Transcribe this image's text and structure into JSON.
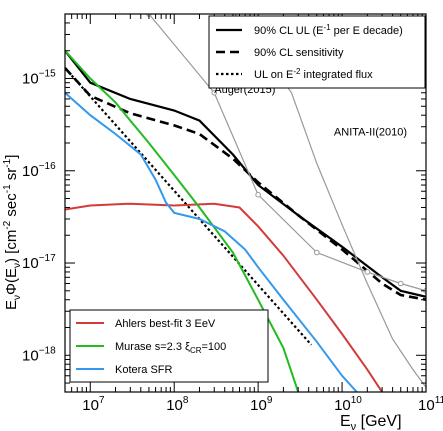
{
  "chart_data": {
    "type": "line",
    "xscale": "log",
    "yscale": "log",
    "xlim": [
      5000000,
      100000000000
    ],
    "ylim": [
      4e-19,
      5e-15
    ],
    "xlabel": {
      "base": "E",
      "sub": "ν",
      "rest": " [GeV]"
    },
    "ylabel": {
      "p1": "E",
      "p1sub": "ν",
      "p2": "Φ(E",
      "p2sub": "ν",
      "p3": ") [cm",
      "sup1": "-2",
      "p4": " sec",
      "sup2": "-1",
      "p5": " sr",
      "sup3": "-1",
      "p6": "]"
    },
    "x_ticks": [
      {
        "value": 10000000,
        "base": "10",
        "exp": "7"
      },
      {
        "value": 100000000,
        "base": "10",
        "exp": "8"
      },
      {
        "value": 1000000000,
        "base": "10",
        "exp": "9"
      },
      {
        "value": 10000000000,
        "base": "10",
        "exp": "10"
      },
      {
        "value": 100000000000,
        "base": "10",
        "exp": "11"
      }
    ],
    "y_ticks": [
      {
        "value": 1e-18,
        "base": "10",
        "exp": "−18"
      },
      {
        "value": 1e-17,
        "base": "10",
        "exp": "−17"
      },
      {
        "value": 1e-16,
        "base": "10",
        "exp": "−16"
      },
      {
        "value": 1e-15,
        "base": "10",
        "exp": "−15"
      }
    ],
    "legend_top": {
      "placement": "top-right",
      "entries": [
        {
          "p1": "90% CL UL (E",
          "sup": "-1",
          "p2": " per E decade)",
          "series": "ul"
        },
        {
          "p1": "90% CL sensitivity",
          "series": "sens"
        },
        {
          "p1": "UL on E",
          "sup": "-2",
          "p2": " integrated flux",
          "series": "e2"
        }
      ]
    },
    "legend_bottom": {
      "placement": "bottom-left",
      "entries": [
        {
          "p1": "Ahlers best-fit 3 EeV",
          "series": "ahlers"
        },
        {
          "p1": "Murase s=2.3 ξ",
          "sub": "CR",
          "p2": "=100",
          "series": "murase"
        },
        {
          "p1": "Kotera SFR",
          "series": "kotera"
        }
      ]
    },
    "annotations": [
      {
        "id": "auger",
        "text": "Auger(2015)",
        "x": 300000000,
        "y": 7e-16
      },
      {
        "id": "anita",
        "text": "ANITA-II(2010)",
        "x": 8000000000,
        "y": 2.4e-16
      }
    ],
    "series": [
      {
        "id": "ul",
        "color": "#000000",
        "width": 2.2,
        "dash": "",
        "points": [
          [
            5000000.0,
            2e-15
          ],
          [
            10000000.0,
            9e-16
          ],
          [
            30000000.0,
            6e-16
          ],
          [
            100000000.0,
            4.5e-16
          ],
          [
            200000000.0,
            3.5e-16
          ],
          [
            500000000.0,
            1.5e-16
          ],
          [
            1000000000.0,
            7e-17
          ],
          [
            3000000000.0,
            3.3e-17
          ],
          [
            10000000000.0,
            1.5e-17
          ],
          [
            30000000000.0,
            7e-18
          ],
          [
            50000000000.0,
            5e-18
          ],
          [
            100000000000.0,
            4.3e-18
          ]
        ]
      },
      {
        "id": "sens",
        "color": "#000000",
        "width": 2.6,
        "dash": "9,5",
        "points": [
          [
            5000000.0,
            1.3e-15
          ],
          [
            10000000.0,
            6.5e-16
          ],
          [
            30000000.0,
            4.2e-16
          ],
          [
            100000000.0,
            3.1e-16
          ],
          [
            200000000.0,
            2.5e-16
          ],
          [
            500000000.0,
            1.35e-16
          ],
          [
            1000000000.0,
            7.5e-17
          ],
          [
            3000000000.0,
            3.3e-17
          ],
          [
            10000000000.0,
            1.4e-17
          ],
          [
            30000000000.0,
            6e-18
          ],
          [
            50000000000.0,
            4.5e-18
          ],
          [
            100000000000.0,
            4e-18
          ]
        ]
      },
      {
        "id": "e2",
        "color": "#000000",
        "width": 2.2,
        "dash": "2.5,2.5",
        "points": [
          [
            5000000.0,
            1.3e-15
          ],
          [
            4300000000.0,
            1.3e-18
          ]
        ]
      },
      {
        "id": "auger",
        "color": "#999999",
        "width": 1.2,
        "dash": "",
        "markers": true,
        "points": [
          [
            50000000.0,
            5e-15
          ],
          [
            300000000.0,
            7e-16
          ],
          [
            1000000000.0,
            5.5e-17
          ],
          [
            5000000000.0,
            1.3e-17
          ],
          [
            20000000000.0,
            8e-18
          ],
          [
            50000000000.0,
            6e-18
          ],
          [
            100000000000.0,
            5e-18
          ]
        ]
      },
      {
        "id": "anita",
        "color": "#999999",
        "width": 1.2,
        "dash": "",
        "markers": false,
        "points": [
          [
            530000000.0,
            5e-15
          ],
          [
            2500000000.0,
            7e-16
          ],
          [
            5000000000.0,
            1.2e-16
          ],
          [
            10000000000.0,
            2.6e-17
          ],
          [
            20000000000.0,
            6e-18
          ],
          [
            40000000000.0,
            1.5e-18
          ],
          [
            70000000000.0,
            7e-19
          ],
          [
            100000000000.0,
            4.5e-19
          ]
        ]
      },
      {
        "id": "ahlers",
        "color": "#d33b3b",
        "width": 2.0,
        "dash": "",
        "points": [
          [
            5000000.0,
            3.8e-17
          ],
          [
            10000000.0,
            4.2e-17
          ],
          [
            30000000.0,
            4.4e-17
          ],
          [
            100000000.0,
            4.2e-17
          ],
          [
            300000000.0,
            4.4e-17
          ],
          [
            600000000.0,
            4e-17
          ],
          [
            1000000000.0,
            2.5e-17
          ],
          [
            2000000000.0,
            1.2e-17
          ],
          [
            5000000000.0,
            4e-18
          ],
          [
            10000000000.0,
            1.7e-18
          ],
          [
            20000000000.0,
            7e-19
          ],
          [
            30000000000.0,
            4e-19
          ]
        ]
      },
      {
        "id": "murase",
        "color": "#22bb22",
        "width": 2.0,
        "dash": "",
        "points": [
          [
            5000000.0,
            2e-15
          ],
          [
            10000000.0,
            1e-15
          ],
          [
            20000000.0,
            5.5e-16
          ],
          [
            30000000.0,
            3.5e-16
          ],
          [
            50000000.0,
            2e-16
          ],
          [
            100000000.0,
            9e-17
          ],
          [
            200000000.0,
            4e-17
          ],
          [
            500000000.0,
            1.3e-17
          ],
          [
            1000000000.0,
            4e-18
          ],
          [
            2000000000.0,
            1.2e-18
          ],
          [
            3000000000.0,
            4e-19
          ]
        ]
      },
      {
        "id": "kotera",
        "color": "#3399ee",
        "width": 2.0,
        "dash": "",
        "points": [
          [
            5000000.0,
            7e-16
          ],
          [
            10000000.0,
            4e-16
          ],
          [
            20000000.0,
            2.5e-16
          ],
          [
            40000000.0,
            1.5e-16
          ],
          [
            60000000.0,
            8e-17
          ],
          [
            80000000.0,
            4.5e-17
          ],
          [
            100000000.0,
            3.5e-17
          ],
          [
            200000000.0,
            3e-17
          ],
          [
            400000000.0,
            2.2e-17
          ],
          [
            700000000.0,
            1.4e-17
          ],
          [
            1000000000.0,
            9e-18
          ],
          [
            2000000000.0,
            4e-18
          ],
          [
            5000000000.0,
            1.4e-18
          ],
          [
            10000000000.0,
            6e-19
          ],
          [
            15000000000.0,
            4e-19
          ]
        ]
      }
    ]
  }
}
